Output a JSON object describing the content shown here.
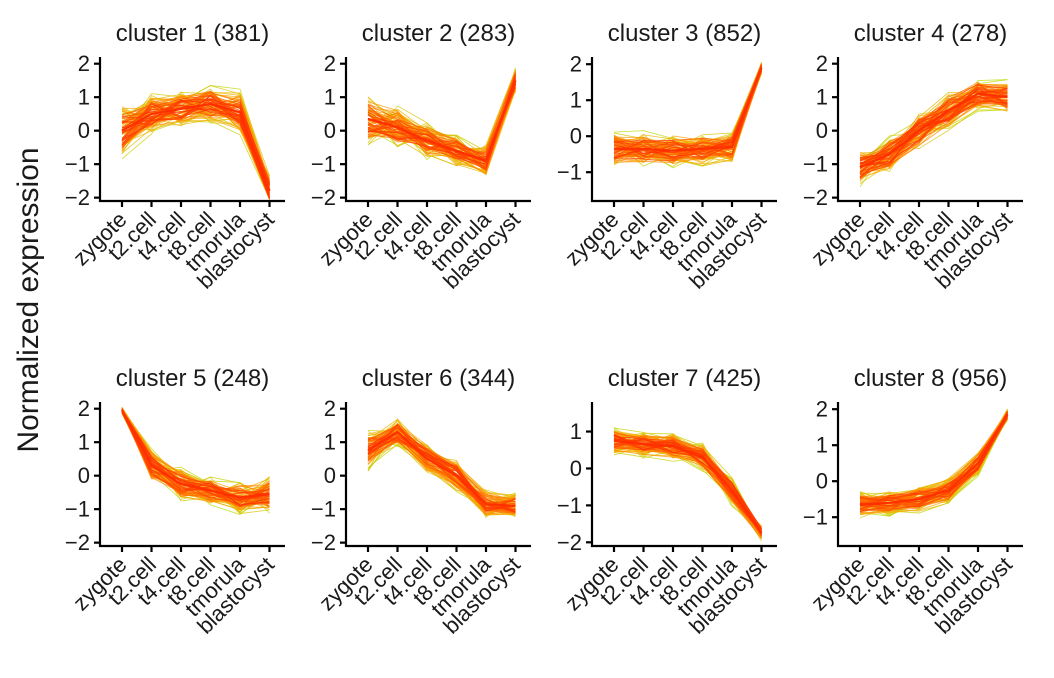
{
  "chart_data": {
    "type": "line",
    "ylabel": "Normalized expression",
    "x": [
      "zygote",
      "t2.cell",
      "t4.cell",
      "t8.cell",
      "tmorula",
      "blastocyst"
    ],
    "colors": {
      "low": "#b5e000",
      "mid": "#ffa500",
      "high": "#ff3000"
    },
    "panels": [
      {
        "title": "cluster 1 (381)",
        "ylim": [
          -2.1,
          2.2
        ],
        "yticks": [
          2,
          1,
          0,
          -1,
          -2
        ],
        "yticklabels": [
          "2",
          "1",
          "0",
          "−1",
          "−2"
        ],
        "center": [
          0.0,
          0.5,
          0.65,
          0.8,
          0.55,
          -1.8
        ],
        "spread": [
          0.75,
          0.55,
          0.5,
          0.55,
          0.6,
          0.45
        ]
      },
      {
        "title": "cluster 2 (283)",
        "ylim": [
          -2.1,
          2.2
        ],
        "yticks": [
          2,
          1,
          0,
          -1,
          -2
        ],
        "yticklabels": [
          "2",
          "1",
          "0",
          "−1",
          "−2"
        ],
        "center": [
          0.35,
          0.1,
          -0.3,
          -0.6,
          -0.9,
          1.5
        ],
        "spread": [
          0.7,
          0.6,
          0.5,
          0.45,
          0.45,
          0.35
        ]
      },
      {
        "title": "cluster 3 (852)",
        "ylim": [
          -1.8,
          2.2
        ],
        "yticks": [
          2,
          1,
          0,
          -1
        ],
        "yticklabels": [
          "2",
          "1",
          "0",
          "−1"
        ],
        "center": [
          -0.35,
          -0.35,
          -0.4,
          -0.35,
          -0.3,
          1.9
        ],
        "spread": [
          0.45,
          0.45,
          0.45,
          0.45,
          0.4,
          0.15
        ]
      },
      {
        "title": "cluster 4 (278)",
        "ylim": [
          -2.1,
          2.2
        ],
        "yticks": [
          2,
          1,
          0,
          -1,
          -2
        ],
        "yticklabels": [
          "2",
          "1",
          "0",
          "−1",
          "−2"
        ],
        "center": [
          -1.1,
          -0.7,
          0.0,
          0.6,
          1.1,
          1.0
        ],
        "spread": [
          0.5,
          0.5,
          0.55,
          0.55,
          0.45,
          0.45
        ]
      },
      {
        "title": "cluster 5 (248)",
        "ylim": [
          -2.1,
          2.2
        ],
        "yticks": [
          2,
          1,
          0,
          -1,
          -2
        ],
        "yticklabels": [
          "2",
          "1",
          "0",
          "−1",
          "−2"
        ],
        "center": [
          1.95,
          0.3,
          -0.25,
          -0.45,
          -0.65,
          -0.55
        ],
        "spread": [
          0.1,
          0.45,
          0.45,
          0.4,
          0.45,
          0.5
        ]
      },
      {
        "title": "cluster 6 (344)",
        "ylim": [
          -2.1,
          2.2
        ],
        "yticks": [
          2,
          1,
          0,
          -1,
          -2
        ],
        "yticklabels": [
          "2",
          "1",
          "0",
          "−1",
          "−2"
        ],
        "center": [
          0.75,
          1.3,
          0.5,
          0.0,
          -0.85,
          -0.9
        ],
        "spread": [
          0.55,
          0.4,
          0.45,
          0.45,
          0.4,
          0.35
        ]
      },
      {
        "title": "cluster 7 (425)",
        "ylim": [
          -2.1,
          1.8
        ],
        "yticks": [
          1,
          0,
          -1,
          -2
        ],
        "yticklabels": [
          "1",
          "0",
          "−1",
          "−2"
        ],
        "center": [
          0.75,
          0.65,
          0.6,
          0.3,
          -0.6,
          -1.75
        ],
        "spread": [
          0.35,
          0.35,
          0.35,
          0.35,
          0.35,
          0.2
        ]
      },
      {
        "title": "cluster 8 (956)",
        "ylim": [
          -1.8,
          2.2
        ],
        "yticks": [
          2,
          1,
          0,
          -1
        ],
        "yticklabels": [
          "2",
          "1",
          "0",
          "−1"
        ],
        "center": [
          -0.65,
          -0.6,
          -0.5,
          -0.25,
          0.5,
          1.85
        ],
        "spread": [
          0.35,
          0.35,
          0.35,
          0.35,
          0.3,
          0.15
        ]
      }
    ]
  }
}
